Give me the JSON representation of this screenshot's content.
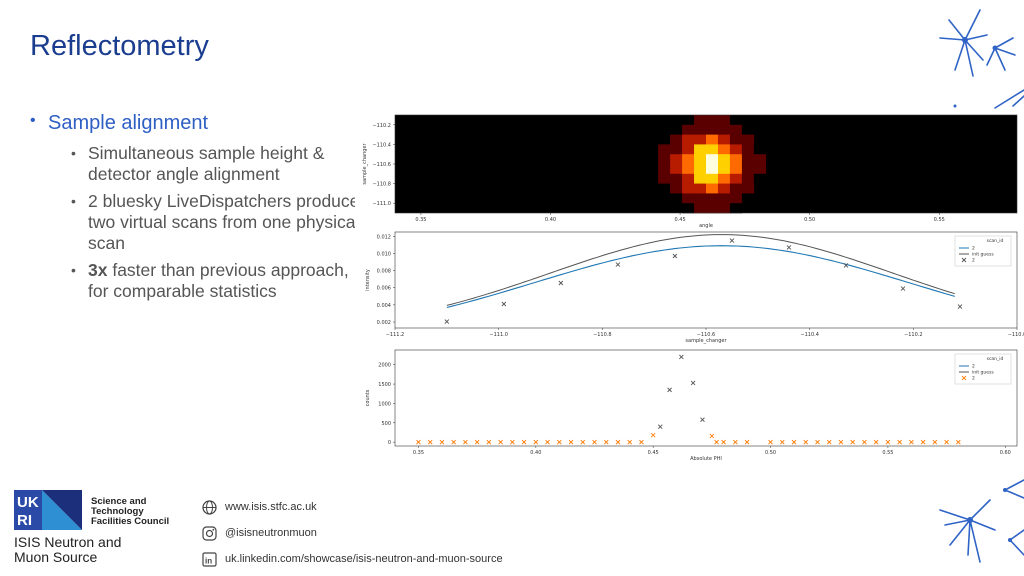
{
  "slide": {
    "title": "Reflectometry",
    "bullet_main": "Sample alignment",
    "sub_bullets": [
      {
        "text": "Simultaneous sample height & detector angle alignment"
      },
      {
        "text": "2 bluesky LiveDispatchers produce two virtual scans from one physical scan"
      },
      {
        "bold": "3x",
        "text": " faster than previous approach, for comparable statistics"
      }
    ]
  },
  "footer": {
    "org_name": "Science and Technology Facilities Council",
    "logo_text": "UK RI",
    "facility": "ISIS Neutron and Muon Source",
    "website": "www.isis.stfc.ac.uk",
    "instagram": "@isisneutronmuon",
    "linkedin": "uk.linkedin.com/showcase/isis-neutron-and-muon-source"
  },
  "chart_data": [
    {
      "type": "heatmap",
      "xlabel": "angle",
      "ylabel": "sample_changer",
      "x_ticks": [
        "0.35",
        "0.40",
        "0.45",
        "0.50",
        "0.55"
      ],
      "y_ticks": [
        "−110.2",
        "−110.4",
        "−110.6",
        "−110.8",
        "−111.0"
      ],
      "xlim": [
        0.34,
        0.58
      ],
      "ylim": [
        -111.1,
        -110.1
      ],
      "peak": {
        "x": 0.462,
        "y": -110.6
      },
      "colormap": [
        "#000000",
        "#5a0000",
        "#b81c00",
        "#ff6a00",
        "#ffd000",
        "#ffffe0"
      ]
    },
    {
      "type": "line",
      "xlabel": "sample_changer",
      "ylabel": "intensity",
      "x_ticks": [
        "−111.2",
        "−111.0",
        "−110.8",
        "−110.6",
        "−110.4",
        "−110.2",
        "−110.0"
      ],
      "y_ticks": [
        "0.002",
        "0.004",
        "0.006",
        "0.008",
        "0.010",
        "0.012"
      ],
      "xlim": [
        -111.2,
        -110.0
      ],
      "ylim": [
        0.0013,
        0.0125
      ],
      "legend_title": "scan_id",
      "legend": [
        "2",
        "init guess",
        "2"
      ],
      "points": [
        [
          -111.1,
          0.00205
        ],
        [
          -110.99,
          0.0041
        ],
        [
          -110.88,
          0.00655
        ],
        [
          -110.77,
          0.0087
        ],
        [
          -110.66,
          0.0097
        ],
        [
          -110.55,
          0.0115
        ],
        [
          -110.44,
          0.0107
        ],
        [
          -110.33,
          0.0086
        ],
        [
          -110.22,
          0.0059
        ],
        [
          -110.11,
          0.0038
        ]
      ],
      "fit": {
        "center": -110.57,
        "amp": 0.0109,
        "sigma": 0.36
      },
      "init_guess": {
        "center": -110.57,
        "amp": 0.0114,
        "sigma": 0.33
      },
      "colors": {
        "fit": "#1f77b4",
        "init": "#555555",
        "points": "#555555"
      },
      "legend_position": "top-right"
    },
    {
      "type": "scatter",
      "xlabel": "Absolute PHI",
      "ylabel": "counts",
      "x_ticks": [
        "0.35",
        "0.40",
        "0.45",
        "0.50",
        "0.55",
        "0.60"
      ],
      "y_ticks": [
        "0",
        "500",
        "1000",
        "1500",
        "2000"
      ],
      "xlim": [
        0.34,
        0.605
      ],
      "ylim": [
        -100,
        2380
      ],
      "legend_title": "scan_id",
      "legend": [
        "2",
        "init guess",
        "2"
      ],
      "flat_x": [
        0.35,
        0.355,
        0.36,
        0.365,
        0.37,
        0.375,
        0.38,
        0.385,
        0.39,
        0.395,
        0.4,
        0.405,
        0.41,
        0.415,
        0.42,
        0.425,
        0.43,
        0.435,
        0.44,
        0.445,
        0.477,
        0.48,
        0.485,
        0.49,
        0.5,
        0.505,
        0.51,
        0.515,
        0.52,
        0.525,
        0.53,
        0.535,
        0.54,
        0.545,
        0.55,
        0.555,
        0.56,
        0.565,
        0.57,
        0.575,
        0.58
      ],
      "peak_points": [
        [
          0.45,
          180
        ],
        [
          0.453,
          400
        ],
        [
          0.457,
          1350
        ],
        [
          0.462,
          2200
        ],
        [
          0.467,
          1530
        ],
        [
          0.471,
          580
        ],
        [
          0.475,
          160
        ]
      ],
      "colors": {
        "cross": "#ff7f0e",
        "peak": "#555555"
      },
      "legend_position": "top-right"
    }
  ]
}
